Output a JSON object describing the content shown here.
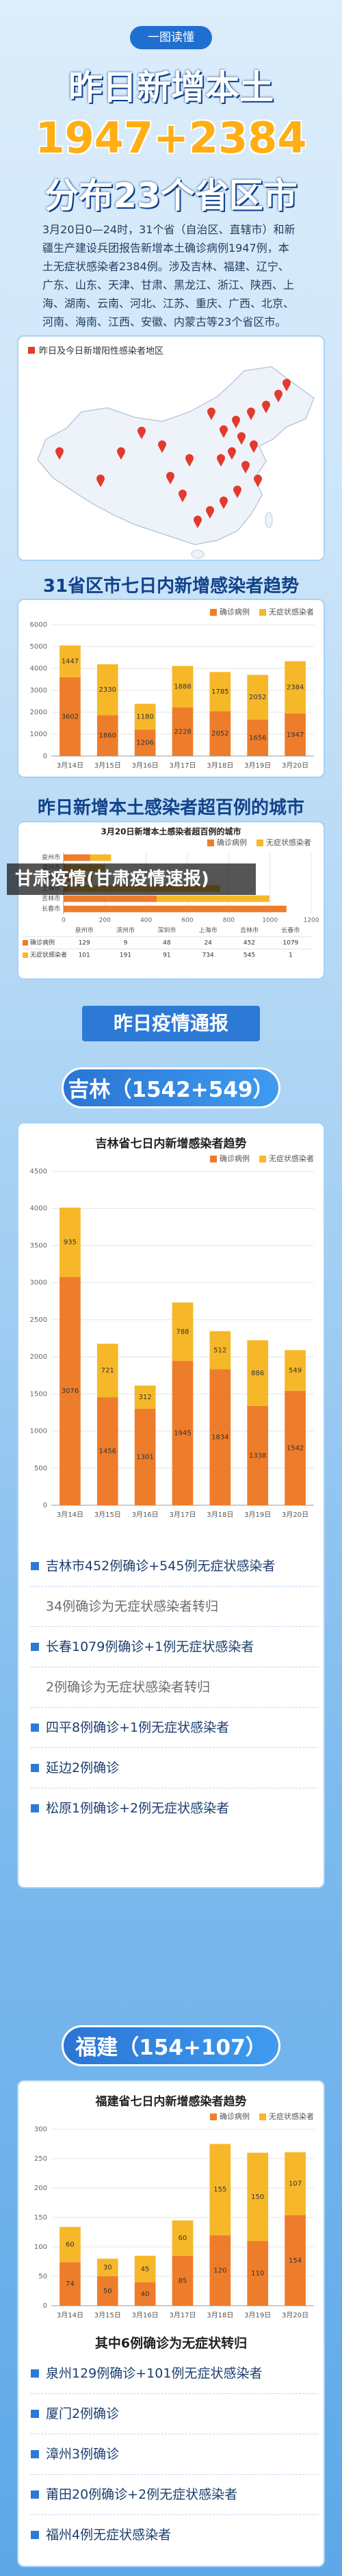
{
  "header": {
    "badge": "一图读懂",
    "title": "昨日新增本土",
    "highlight": "1947+2384",
    "subtitle": "分布23个省区市",
    "summary": "3月20日0—24时，31个省（自治区、直辖市）和新疆生产建设兵团报告新增本土确诊病例1947例，本土无症状感染者2384例。涉及吉林、福建、辽宁、广东、山东、天津、甘肃、黑龙江、浙江、陕西、上海、湖南、云南、河北、江苏、重庆、广西、北京、河南、海南、江西、安徽、内蒙古等23个省区市。"
  },
  "map": {
    "label": "昨日及今日新增阳性感染者地区"
  },
  "trend_heading": "31省区市七日内新增感染者趋势",
  "cities_heading": "昨日新增本土感染者超百例的城市",
  "overlay": "甘肃疫情(甘肃疫情速报)",
  "report_heading": "昨日疫情通报",
  "jilin": {
    "heading": "吉林（1542+549）",
    "list": [
      "吉林市452例确诊+545例无症状感染者",
      "34例确诊为无症状感染者转归",
      "长春1079例确诊+1例无症状感染者",
      "2例确诊为无症状感染者转归",
      "四平8例确诊+1例无症状感染者",
      "延边2例确诊",
      "松原1例确诊+2例无症状感染者"
    ]
  },
  "fujian": {
    "heading": "福建（154+107）",
    "list_title": "其中6例确诊为无症状转归",
    "list": [
      "泉州129例确诊+101例无症状感染者",
      "厦门2例确诊",
      "漳州3例确诊",
      "莆田20例确诊+2例无症状感染者",
      "福州4例无症状感染者"
    ]
  },
  "chart_data": [
    {
      "type": "bar",
      "stacked": true,
      "categories": [
        "3月14日",
        "3月15日",
        "3月16日",
        "3月17日",
        "3月18日",
        "3月19日",
        "3月20日"
      ],
      "series": [
        {
          "name": "确诊病例",
          "color": "#ee7d2b",
          "values": [
            3602,
            1860,
            1206,
            2228,
            2052,
            1656,
            1947
          ]
        },
        {
          "name": "无症状感染者",
          "color": "#f6b829",
          "values": [
            1447,
            2330,
            1180,
            1888,
            1785,
            2052,
            2384
          ]
        }
      ],
      "ylim": [
        0,
        6000
      ],
      "yticks": [
        0,
        1000,
        2000,
        3000,
        4000,
        5000,
        6000
      ],
      "grid": true
    },
    {
      "type": "hbar",
      "stacked": true,
      "title": "3月20日新增本土感染者超百例的城市",
      "categories": [
        "泉州市",
        "滨州市",
        "深圳市",
        "上海市",
        "吉林市",
        "长春市"
      ],
      "series": [
        {
          "name": "确诊病例",
          "color": "#ee7d2b",
          "values": [
            129,
            9,
            48,
            24,
            452,
            1079
          ]
        },
        {
          "name": "无症状感染者",
          "color": "#f6b829",
          "values": [
            101,
            191,
            91,
            734,
            545,
            1
          ]
        }
      ],
      "xlim": [
        0,
        1200
      ],
      "xticks": [
        0,
        200,
        400,
        600,
        800,
        1000,
        1200
      ],
      "grid": true
    },
    {
      "type": "bar",
      "stacked": true,
      "title": "吉林省七日内新增感染者趋势",
      "categories": [
        "3月14日",
        "3月15日",
        "3月16日",
        "3月17日",
        "3月18日",
        "3月19日",
        "3月20日"
      ],
      "series": [
        {
          "name": "确诊病例",
          "color": "#ee7d2b",
          "values": [
            3076,
            1456,
            1301,
            1945,
            1834,
            1338,
            1542
          ]
        },
        {
          "name": "无症状感染者",
          "color": "#f6b829",
          "values": [
            935,
            721,
            312,
            788,
            512,
            886,
            549
          ]
        }
      ],
      "ylim": [
        0,
        4500
      ],
      "yticks": [
        0,
        500,
        1000,
        1500,
        2000,
        2500,
        3000,
        3500,
        4000,
        4500
      ],
      "grid": true
    },
    {
      "type": "bar",
      "stacked": true,
      "title": "福建省七日内新增感染者趋势",
      "categories": [
        "3月14日",
        "3月15日",
        "3月16日",
        "3月17日",
        "3月18日",
        "3月19日",
        "3月20日"
      ],
      "series": [
        {
          "name": "确诊病例",
          "color": "#ee7d2b",
          "values": [
            74,
            50,
            40,
            85,
            120,
            110,
            154
          ]
        },
        {
          "name": "无症状感染者",
          "color": "#f6b829",
          "values": [
            60,
            30,
            45,
            60,
            155,
            150,
            107
          ]
        }
      ],
      "ylim": [
        0,
        300
      ],
      "yticks": [
        0,
        50,
        100,
        150,
        200,
        250,
        300
      ],
      "grid": true
    }
  ]
}
